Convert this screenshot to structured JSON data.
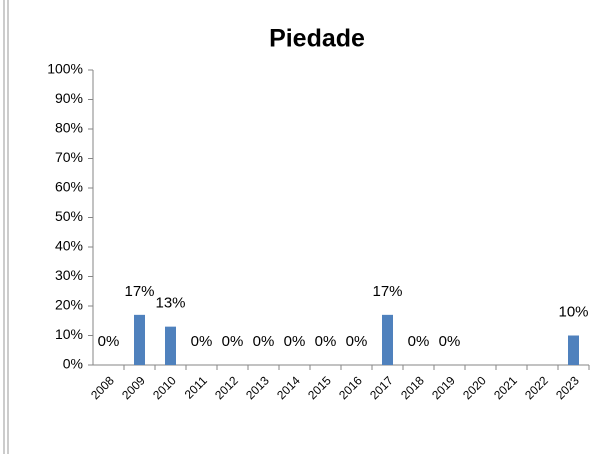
{
  "chart_data": {
    "type": "bar",
    "title": "Piedade",
    "categories": [
      "2008",
      "2009",
      "2010",
      "2011",
      "2012",
      "2013",
      "2014",
      "2015",
      "2016",
      "2017",
      "2018",
      "2019",
      "2020",
      "2021",
      "2022",
      "2023"
    ],
    "values": [
      0,
      17,
      13,
      0,
      0,
      0,
      0,
      0,
      0,
      17,
      0,
      0,
      null,
      null,
      null,
      10
    ],
    "value_labels": [
      "0%",
      "17%",
      "13%",
      "0%",
      "0%",
      "0%",
      "0%",
      "0%",
      "0%",
      "17%",
      "0%",
      "0%",
      null,
      null,
      null,
      "10%"
    ],
    "color": "#4f81bd",
    "ylim": [
      0,
      100
    ],
    "yticks": [
      {
        "value": 0,
        "label": "0%"
      },
      {
        "value": 10,
        "label": "10%"
      },
      {
        "value": 20,
        "label": "20%"
      },
      {
        "value": 30,
        "label": "30%"
      },
      {
        "value": 40,
        "label": "40%"
      },
      {
        "value": 50,
        "label": "50%"
      },
      {
        "value": 60,
        "label": "60%"
      },
      {
        "value": 70,
        "label": "70%"
      },
      {
        "value": 80,
        "label": "80%"
      },
      {
        "value": 90,
        "label": "90%"
      },
      {
        "value": 100,
        "label": "100%"
      }
    ],
    "grid": false
  }
}
